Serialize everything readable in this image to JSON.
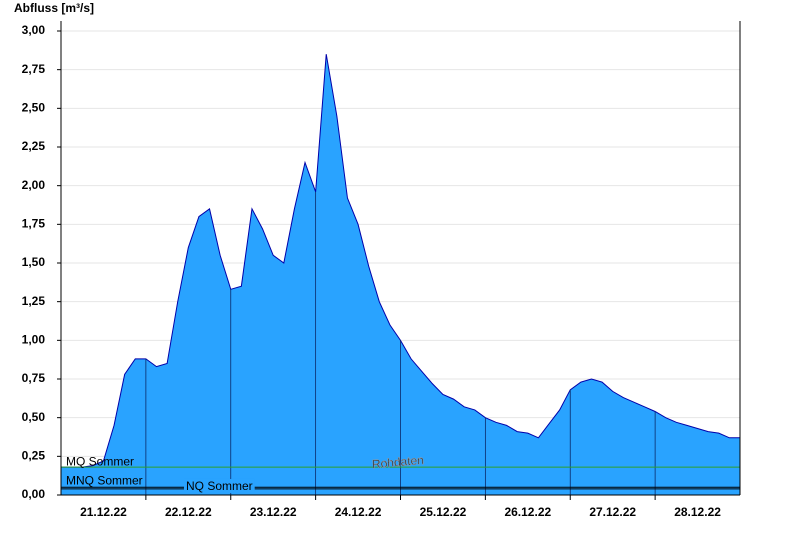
{
  "chart_data": {
    "type": "area",
    "title": "Abfluss [m³/s]",
    "color": "#29a3ff",
    "line_color": "#0000aa",
    "grid": true,
    "categories": [
      null,
      null,
      null,
      null,
      "21.12.22",
      null,
      null,
      null,
      null,
      null,
      null,
      null,
      "22.12.22",
      null,
      null,
      null,
      null,
      null,
      null,
      null,
      "23.12.22",
      null,
      null,
      null,
      null,
      null,
      null,
      null,
      "24.12.22",
      null,
      null,
      null,
      null,
      null,
      null,
      null,
      "25.12.22",
      null,
      null,
      null,
      null,
      null,
      null,
      null,
      "26.12.22",
      null,
      null,
      null,
      null,
      null,
      null,
      null,
      "27.12.22",
      null,
      null,
      null,
      null,
      null,
      null,
      null,
      "28.12.22",
      null,
      null,
      null,
      null
    ],
    "values": [
      0.18,
      0.18,
      0.18,
      0.19,
      0.22,
      0.45,
      0.78,
      0.88,
      0.88,
      0.83,
      0.85,
      1.25,
      1.6,
      1.8,
      1.85,
      1.55,
      1.33,
      1.35,
      1.85,
      1.72,
      1.55,
      1.5,
      1.85,
      2.15,
      1.96,
      2.85,
      2.45,
      1.92,
      1.75,
      1.48,
      1.25,
      1.1,
      1.0,
      0.88,
      0.8,
      0.72,
      0.65,
      0.62,
      0.57,
      0.55,
      0.5,
      0.47,
      0.45,
      0.41,
      0.4,
      0.37,
      0.46,
      0.55,
      0.68,
      0.73,
      0.75,
      0.73,
      0.67,
      0.63,
      0.6,
      0.57,
      0.54,
      0.5,
      0.47,
      0.45,
      0.43,
      0.41,
      0.4,
      0.37,
      0.37
    ],
    "ylim": [
      0,
      3
    ],
    "yticks": [
      {
        "value": 0,
        "label": "0,00"
      },
      {
        "value": 0.25,
        "label": "0,25"
      },
      {
        "value": 0.5,
        "label": "0,50"
      },
      {
        "value": 0.75,
        "label": "0,75"
      },
      {
        "value": 1,
        "label": "1,00"
      },
      {
        "value": 1.25,
        "label": "1,25"
      },
      {
        "value": 1.5,
        "label": "1,50"
      },
      {
        "value": 1.75,
        "label": "1,75"
      },
      {
        "value": 2,
        "label": "2,00"
      },
      {
        "value": 2.25,
        "label": "2,25"
      },
      {
        "value": 2.5,
        "label": "2,50"
      },
      {
        "value": 2.75,
        "label": "2,75"
      },
      {
        "value": 3,
        "label": "3,00"
      }
    ],
    "reference_lines": [
      {
        "name": "MQ Sommer",
        "value": 0.18,
        "color": "#2ca02c"
      },
      {
        "name": "MNQ Sommer",
        "value": 0.05,
        "color": "#000000"
      },
      {
        "name": "NQ Sommer",
        "value": 0.04,
        "color": "#000000"
      }
    ],
    "annotation": "Rohdaten"
  }
}
